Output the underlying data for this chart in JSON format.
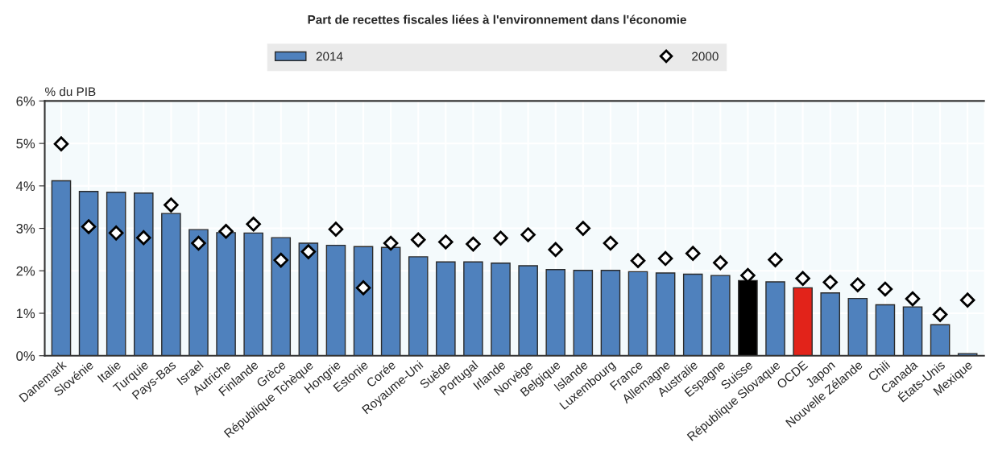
{
  "chart_data": {
    "type": "bar",
    "title": "Part de recettes fiscales liées à l'environnement dans l'économie",
    "ylabel": "% du PIB",
    "categories": [
      "Danemark",
      "Slovénie",
      "Italie",
      "Turquie",
      "Pays-Bas",
      "Israel",
      "Autriche",
      "Finlande",
      "Grèce",
      "République Tchèque",
      "Hongrie",
      "Estonie",
      "Corée",
      "Royaume-Uni",
      "Suède",
      "Portugal",
      "Irlande",
      "Norvège",
      "Belgique",
      "Islande",
      "Luxembourg",
      "France",
      "Allemagne",
      "Australie",
      "Espagne",
      "Suisse",
      "République Slovaque",
      "OCDE",
      "Japon",
      "Nouvelle Zélande",
      "Chili",
      "Canada",
      "États-Unis",
      "Mexique"
    ],
    "series": [
      {
        "name": "2014",
        "color": "#4f81bd",
        "colors": [
          "#4f81bd",
          "#4f81bd",
          "#4f81bd",
          "#4f81bd",
          "#4f81bd",
          "#4f81bd",
          "#4f81bd",
          "#4f81bd",
          "#4f81bd",
          "#4f81bd",
          "#4f81bd",
          "#4f81bd",
          "#4f81bd",
          "#4f81bd",
          "#4f81bd",
          "#4f81bd",
          "#4f81bd",
          "#4f81bd",
          "#4f81bd",
          "#4f81bd",
          "#4f81bd",
          "#4f81bd",
          "#4f81bd",
          "#4f81bd",
          "#4f81bd",
          "#000000",
          "#4f81bd",
          "#e2231a",
          "#4f81bd",
          "#4f81bd",
          "#4f81bd",
          "#4f81bd",
          "#4f81bd",
          "#4f81bd"
        ],
        "values": [
          4.12,
          3.87,
          3.85,
          3.83,
          3.35,
          2.97,
          2.9,
          2.89,
          2.78,
          2.65,
          2.6,
          2.57,
          2.55,
          2.33,
          2.21,
          2.21,
          2.18,
          2.12,
          2.03,
          2.01,
          2.01,
          1.98,
          1.95,
          1.92,
          1.89,
          1.77,
          1.74,
          1.6,
          1.48,
          1.35,
          1.2,
          1.15,
          0.73,
          0.05
        ]
      },
      {
        "name": "2000",
        "type": "scatter",
        "marker": "diamond",
        "color": "#ffffff",
        "values": [
          4.99,
          3.04,
          2.89,
          2.78,
          3.55,
          2.65,
          2.93,
          3.1,
          2.25,
          2.45,
          2.98,
          1.6,
          2.65,
          2.73,
          2.68,
          2.63,
          2.77,
          2.85,
          2.5,
          3.0,
          2.65,
          2.24,
          2.29,
          2.41,
          2.19,
          1.89,
          2.26,
          1.82,
          1.73,
          1.67,
          1.57,
          1.34,
          0.97,
          1.31
        ]
      }
    ],
    "ylim": [
      0,
      6
    ],
    "yticks": [
      {
        "value": 0,
        "label": "0%"
      },
      {
        "value": 1,
        "label": "1%"
      },
      {
        "value": 2,
        "label": "2%"
      },
      {
        "value": 3,
        "label": "3%"
      },
      {
        "value": 4,
        "label": "4%"
      },
      {
        "value": 5,
        "label": "5%"
      },
      {
        "value": 6,
        "label": "6%"
      }
    ],
    "grid": true,
    "legend": "top"
  }
}
